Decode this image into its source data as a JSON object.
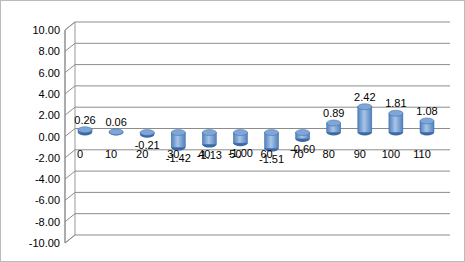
{
  "chart_data": {
    "type": "bar",
    "categories": [
      "0",
      "10",
      "20",
      "30",
      "40",
      "50",
      "60",
      "70",
      "80",
      "90",
      "100",
      "110"
    ],
    "values": [
      0.26,
      0.06,
      -0.21,
      -1.42,
      -1.13,
      -1.0,
      -1.51,
      -0.6,
      0.89,
      2.42,
      1.81,
      1.08
    ],
    "value_labels": [
      "0.26",
      "0.06",
      "-0.21",
      "-1.42",
      "-1.13",
      "-1.00",
      "-1.51",
      "-0.60",
      "0.89",
      "2.42",
      "1.81",
      "1.08"
    ],
    "color": "#4f81bd",
    "data_labels": true,
    "grid": true,
    "ylim": [
      -10,
      10
    ],
    "yticks": [
      {
        "value": -10,
        "label": "-10.00"
      },
      {
        "value": -8,
        "label": "-8.00"
      },
      {
        "value": -6,
        "label": "-6.00"
      },
      {
        "value": -4,
        "label": "-4.00"
      },
      {
        "value": -2,
        "label": "-2.00"
      },
      {
        "value": 0,
        "label": "0.00"
      },
      {
        "value": 2,
        "label": "2.00"
      },
      {
        "value": 4,
        "label": "4.00"
      },
      {
        "value": 6,
        "label": "6.00"
      },
      {
        "value": 8,
        "label": "8.00"
      },
      {
        "value": 10,
        "label": "10.00"
      }
    ]
  }
}
